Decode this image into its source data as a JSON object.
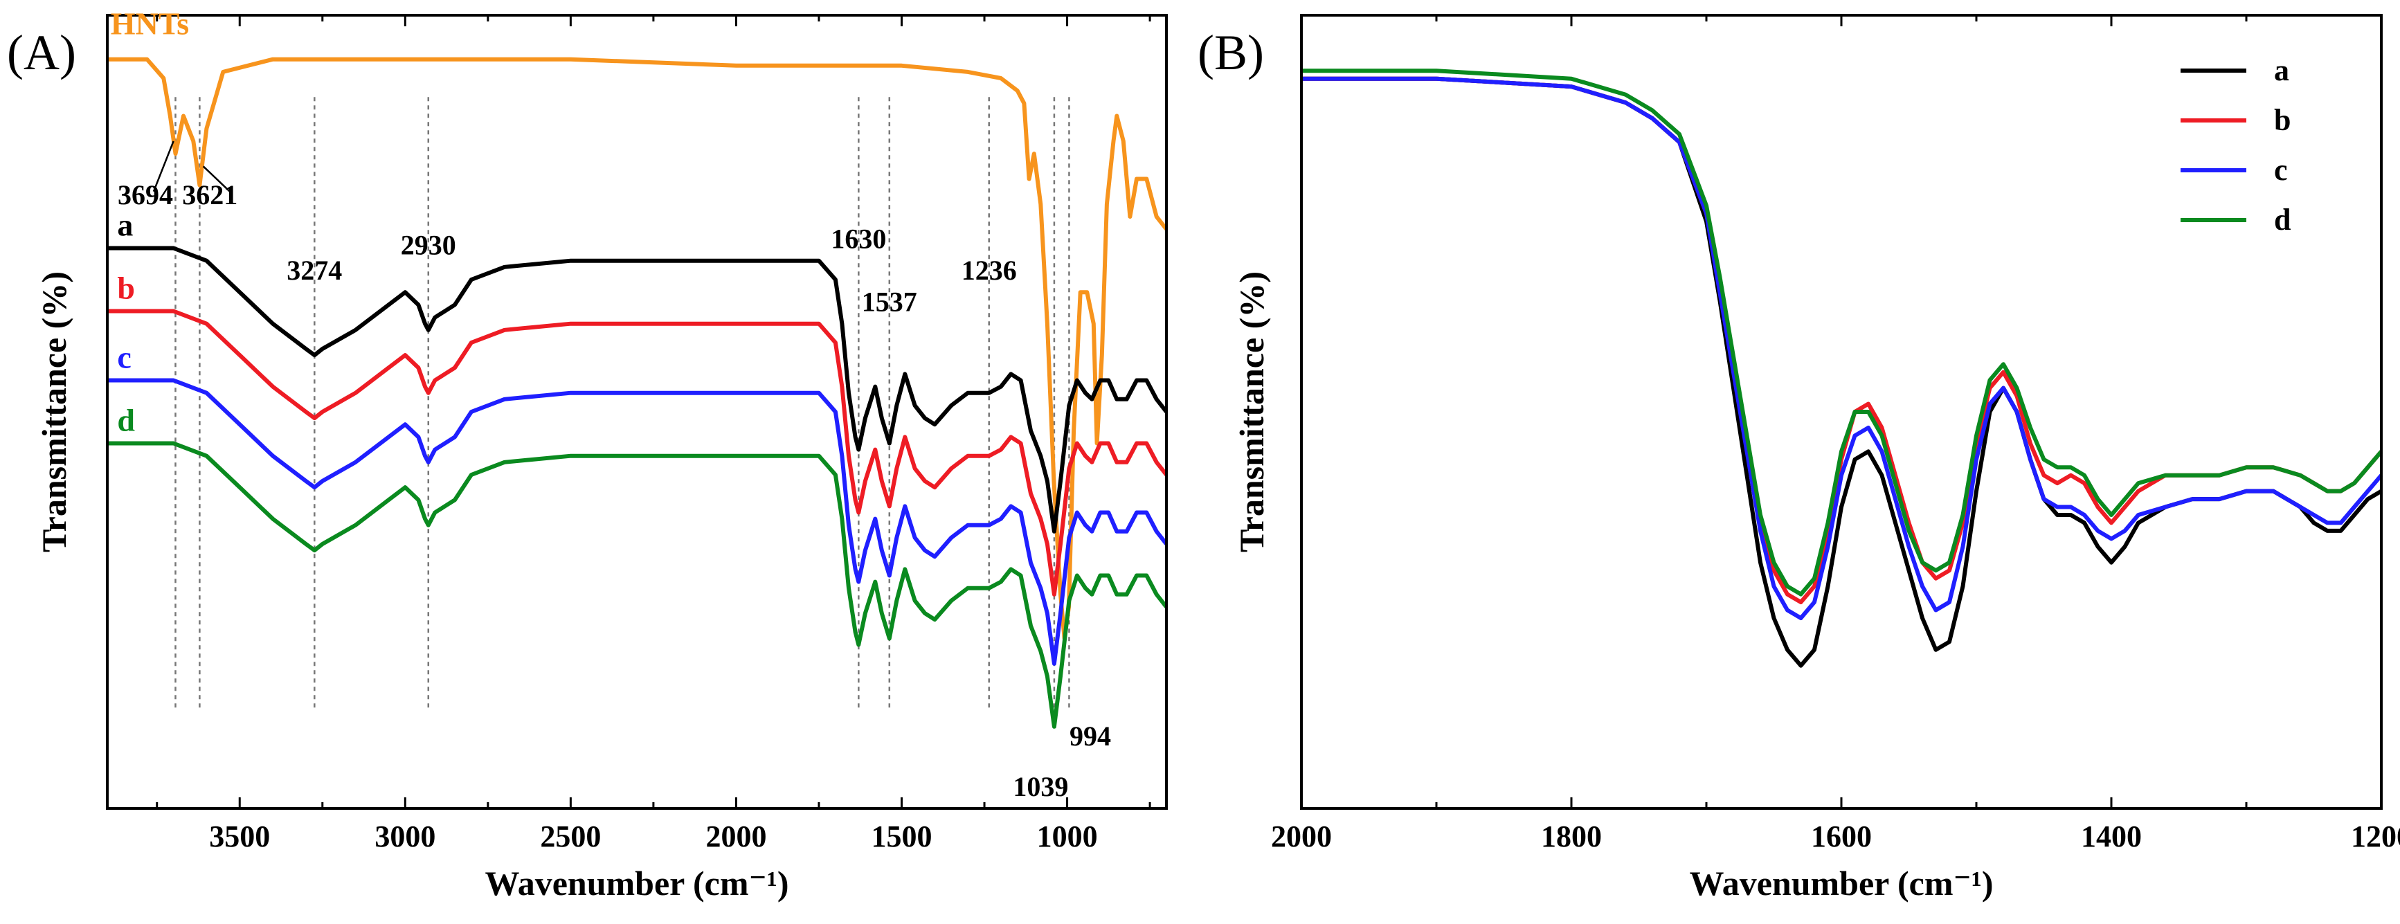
{
  "chart_data": [
    {
      "panel": "(A)",
      "type": "line",
      "xlabel": "Wavenumber (cm⁻¹)",
      "ylabel": "Transmittance (%)",
      "xlim": [
        3900,
        700
      ],
      "xticks": [
        3500,
        3000,
        2500,
        2000,
        1500,
        1000
      ],
      "series": [
        {
          "name": "HNTs",
          "color": "#f7941d",
          "x": [
            3900,
            3780,
            3730,
            3710,
            3694,
            3670,
            3640,
            3621,
            3600,
            3550,
            3400,
            3000,
            2500,
            2000,
            1500,
            1300,
            1200,
            1150,
            1130,
            1115,
            1100,
            1080,
            1060,
            1040,
            1020,
            1008,
            995,
            980,
            960,
            940,
            920,
            910,
            895,
            880,
            860,
            850,
            830,
            810,
            790,
            760,
            730,
            700
          ],
          "y": [
            97,
            97,
            94,
            88,
            82,
            88,
            84,
            77,
            86,
            95,
            97,
            97,
            97,
            96,
            96,
            95,
            94,
            92,
            90,
            78,
            82,
            74,
            55,
            30,
            12,
            5,
            10,
            38,
            60,
            60,
            55,
            36,
            50,
            74,
            84,
            88,
            84,
            72,
            78,
            78,
            72,
            70
          ]
        },
        {
          "name": "a",
          "color": "#000000",
          "x": [
            3900,
            3700,
            3600,
            3500,
            3400,
            3300,
            3274,
            3250,
            3150,
            3050,
            3000,
            2960,
            2940,
            2930,
            2910,
            2880,
            2850,
            2800,
            2700,
            2500,
            2200,
            1900,
            1750,
            1700,
            1680,
            1660,
            1640,
            1630,
            1610,
            1580,
            1560,
            1537,
            1515,
            1490,
            1460,
            1430,
            1400,
            1350,
            1300,
            1236,
            1200,
            1170,
            1140,
            1110,
            1080,
            1060,
            1039,
            1020,
            994,
            970,
            945,
            925,
            900,
            875,
            850,
            820,
            790,
            760,
            730,
            700
          ],
          "y": [
            67,
            67,
            65,
            60,
            55,
            51,
            50,
            51,
            54,
            58,
            60,
            58,
            55,
            54,
            56,
            57,
            58,
            62,
            64,
            65,
            65,
            65,
            65,
            62,
            55,
            44,
            37,
            35,
            40,
            45,
            40,
            36,
            42,
            47,
            42,
            40,
            39,
            42,
            44,
            44,
            45,
            47,
            46,
            38,
            34,
            30,
            22,
            30,
            42,
            46,
            44,
            43,
            46,
            46,
            43,
            43,
            46,
            46,
            43,
            41
          ]
        },
        {
          "name": "b",
          "color": "#ee1c24",
          "x": [
            3900,
            3700,
            3600,
            3500,
            3400,
            3300,
            3274,
            3250,
            3150,
            3050,
            3000,
            2960,
            2940,
            2930,
            2910,
            2880,
            2850,
            2800,
            2700,
            2500,
            2200,
            1900,
            1750,
            1700,
            1680,
            1660,
            1640,
            1630,
            1610,
            1580,
            1560,
            1537,
            1515,
            1490,
            1460,
            1430,
            1400,
            1350,
            1300,
            1236,
            1200,
            1170,
            1140,
            1110,
            1080,
            1060,
            1039,
            1020,
            994,
            970,
            945,
            925,
            900,
            875,
            850,
            820,
            790,
            760,
            730,
            700
          ],
          "y": [
            57,
            57,
            55,
            50,
            45,
            41,
            40,
            41,
            44,
            48,
            50,
            48,
            45,
            44,
            46,
            47,
            48,
            52,
            54,
            55,
            55,
            55,
            55,
            52,
            45,
            34,
            27,
            25,
            30,
            35,
            30,
            26,
            32,
            37,
            32,
            30,
            29,
            32,
            34,
            34,
            35,
            37,
            36,
            28,
            24,
            20,
            12,
            20,
            32,
            36,
            34,
            33,
            36,
            36,
            33,
            33,
            36,
            36,
            33,
            31
          ]
        },
        {
          "name": "c",
          "color": "#1f1fff",
          "x": [
            3900,
            3700,
            3600,
            3500,
            3400,
            3300,
            3274,
            3250,
            3150,
            3050,
            3000,
            2960,
            2940,
            2930,
            2910,
            2880,
            2850,
            2800,
            2700,
            2500,
            2200,
            1900,
            1750,
            1700,
            1680,
            1660,
            1640,
            1630,
            1610,
            1580,
            1560,
            1537,
            1515,
            1490,
            1460,
            1430,
            1400,
            1350,
            1300,
            1236,
            1200,
            1170,
            1140,
            1110,
            1080,
            1060,
            1039,
            1020,
            994,
            970,
            945,
            925,
            900,
            875,
            850,
            820,
            790,
            760,
            730,
            700
          ],
          "y": [
            46,
            46,
            44,
            39,
            34,
            30,
            29,
            30,
            33,
            37,
            39,
            37,
            34,
            33,
            35,
            36,
            37,
            41,
            43,
            44,
            44,
            44,
            44,
            41,
            34,
            23,
            16,
            14,
            19,
            24,
            19,
            15,
            21,
            26,
            21,
            19,
            18,
            21,
            23,
            23,
            24,
            26,
            25,
            17,
            13,
            9,
            1,
            9,
            21,
            25,
            23,
            22,
            25,
            25,
            22,
            22,
            25,
            25,
            22,
            20
          ]
        },
        {
          "name": "d",
          "color": "#0a8a1f",
          "x": [
            3900,
            3700,
            3600,
            3500,
            3400,
            3300,
            3274,
            3250,
            3150,
            3050,
            3000,
            2960,
            2940,
            2930,
            2910,
            2880,
            2850,
            2800,
            2700,
            2500,
            2200,
            1900,
            1750,
            1700,
            1680,
            1660,
            1640,
            1630,
            1610,
            1580,
            1560,
            1537,
            1515,
            1490,
            1460,
            1430,
            1400,
            1350,
            1300,
            1236,
            1200,
            1170,
            1140,
            1110,
            1080,
            1060,
            1039,
            1020,
            994,
            970,
            945,
            925,
            900,
            875,
            850,
            820,
            790,
            760,
            730,
            700
          ],
          "y": [
            36,
            36,
            34,
            29,
            24,
            20,
            19,
            20,
            23,
            27,
            29,
            27,
            24,
            23,
            25,
            26,
            27,
            31,
            33,
            34,
            34,
            34,
            34,
            31,
            24,
            13,
            6,
            4,
            9,
            14,
            9,
            5,
            11,
            16,
            11,
            9,
            8,
            11,
            13,
            13,
            14,
            16,
            15,
            7,
            3,
            -1,
            -9,
            -1,
            11,
            15,
            13,
            12,
            15,
            15,
            12,
            12,
            15,
            15,
            12,
            10
          ]
        }
      ],
      "annotations": [
        {
          "text": "HNTs",
          "x": 3890,
          "y": 101
        },
        {
          "text": "3694",
          "x": 3785,
          "y": 74
        },
        {
          "text": "3621",
          "x": 3590,
          "y": 74
        },
        {
          "text": "a",
          "x": 3870,
          "y": 69
        },
        {
          "text": "b",
          "x": 3870,
          "y": 59
        },
        {
          "text": "c",
          "x": 3870,
          "y": 48
        },
        {
          "text": "d",
          "x": 3870,
          "y": 38
        },
        {
          "text": "3274",
          "x": 3274,
          "y": 62
        },
        {
          "text": "2930",
          "x": 2930,
          "y": 66
        },
        {
          "text": "1630",
          "x": 1630,
          "y": 67
        },
        {
          "text": "1537",
          "x": 1537,
          "y": 57
        },
        {
          "text": "1236",
          "x": 1236,
          "y": 62
        },
        {
          "text": "1039",
          "x": 1080,
          "y": -20
        },
        {
          "text": "994",
          "x": 930,
          "y": -12
        }
      ],
      "guides": [
        3694,
        3621,
        3274,
        2930,
        1630,
        1537,
        1236,
        1039,
        994
      ]
    },
    {
      "panel": "(B)",
      "type": "line",
      "xlabel": "Wavenumber (cm⁻¹)",
      "ylabel": "Transmittance (%)",
      "xlim": [
        2000,
        1200
      ],
      "xticks": [
        2000,
        1800,
        1600,
        1400,
        1200
      ],
      "series": [
        {
          "name": "a",
          "color": "#000000",
          "x": [
            2000,
            1900,
            1800,
            1760,
            1740,
            1720,
            1700,
            1690,
            1680,
            1670,
            1660,
            1650,
            1640,
            1630,
            1620,
            1610,
            1600,
            1590,
            1580,
            1570,
            1560,
            1550,
            1540,
            1530,
            1520,
            1510,
            1500,
            1490,
            1480,
            1470,
            1460,
            1450,
            1440,
            1430,
            1420,
            1410,
            1400,
            1390,
            1380,
            1360,
            1340,
            1320,
            1300,
            1280,
            1260,
            1250,
            1240,
            1230,
            1220,
            1210,
            1200
          ],
          "y": [
            92,
            92,
            91,
            89,
            87,
            84,
            74,
            64,
            53,
            42,
            31,
            24,
            20,
            18,
            20,
            28,
            38,
            44,
            45,
            42,
            36,
            30,
            24,
            20,
            21,
            28,
            40,
            50,
            53,
            50,
            44,
            39,
            37,
            37,
            36,
            33,
            31,
            33,
            36,
            38,
            39,
            39,
            40,
            40,
            38,
            36,
            35,
            35,
            37,
            39,
            40
          ]
        },
        {
          "name": "b",
          "color": "#ee1c24",
          "x": [
            2000,
            1900,
            1800,
            1760,
            1740,
            1720,
            1700,
            1690,
            1680,
            1670,
            1660,
            1650,
            1640,
            1630,
            1620,
            1610,
            1600,
            1590,
            1580,
            1570,
            1560,
            1550,
            1540,
            1530,
            1520,
            1510,
            1500,
            1490,
            1480,
            1470,
            1460,
            1450,
            1440,
            1430,
            1420,
            1410,
            1400,
            1390,
            1380,
            1360,
            1340,
            1320,
            1300,
            1280,
            1260,
            1250,
            1240,
            1230,
            1220,
            1210,
            1200
          ],
          "y": [
            92,
            92,
            91,
            89,
            87,
            84,
            75,
            66,
            56,
            46,
            36,
            30,
            27,
            26,
            28,
            35,
            44,
            50,
            51,
            48,
            42,
            36,
            31,
            29,
            30,
            36,
            46,
            53,
            55,
            52,
            46,
            42,
            41,
            42,
            41,
            38,
            36,
            38,
            40,
            42,
            42,
            42,
            43,
            43,
            42,
            41,
            40,
            40,
            41,
            43,
            45
          ]
        },
        {
          "name": "c",
          "color": "#1f1fff",
          "x": [
            2000,
            1900,
            1800,
            1760,
            1740,
            1720,
            1700,
            1690,
            1680,
            1670,
            1660,
            1650,
            1640,
            1630,
            1620,
            1610,
            1600,
            1590,
            1580,
            1570,
            1560,
            1550,
            1540,
            1530,
            1520,
            1510,
            1500,
            1490,
            1480,
            1470,
            1460,
            1450,
            1440,
            1430,
            1420,
            1410,
            1400,
            1390,
            1380,
            1360,
            1340,
            1320,
            1300,
            1280,
            1260,
            1250,
            1240,
            1230,
            1220,
            1210,
            1200
          ],
          "y": [
            92,
            92,
            91,
            89,
            87,
            84,
            75,
            65,
            55,
            45,
            35,
            28,
            25,
            24,
            26,
            33,
            42,
            47,
            48,
            45,
            39,
            33,
            28,
            25,
            26,
            33,
            44,
            51,
            53,
            50,
            44,
            39,
            38,
            38,
            37,
            35,
            34,
            35,
            37,
            38,
            39,
            39,
            40,
            40,
            38,
            37,
            36,
            36,
            38,
            40,
            42
          ]
        },
        {
          "name": "d",
          "color": "#0a8a1f",
          "x": [
            2000,
            1900,
            1800,
            1760,
            1740,
            1720,
            1700,
            1690,
            1680,
            1670,
            1660,
            1650,
            1640,
            1630,
            1620,
            1610,
            1600,
            1590,
            1580,
            1570,
            1560,
            1550,
            1540,
            1530,
            1520,
            1510,
            1500,
            1490,
            1480,
            1470,
            1460,
            1450,
            1440,
            1430,
            1420,
            1410,
            1400,
            1390,
            1380,
            1360,
            1340,
            1320,
            1300,
            1280,
            1260,
            1250,
            1240,
            1230,
            1220,
            1210,
            1200
          ],
          "y": [
            93,
            93,
            92,
            90,
            88,
            85,
            76,
            67,
            57,
            47,
            37,
            31,
            28,
            27,
            29,
            36,
            45,
            50,
            50,
            47,
            41,
            35,
            31,
            30,
            31,
            37,
            47,
            54,
            56,
            53,
            48,
            44,
            43,
            43,
            42,
            39,
            37,
            39,
            41,
            42,
            42,
            42,
            43,
            43,
            42,
            41,
            40,
            40,
            41,
            43,
            45
          ]
        }
      ],
      "legend": {
        "position": "top-right",
        "entries": [
          "a",
          "b",
          "c",
          "d"
        ]
      }
    }
  ]
}
